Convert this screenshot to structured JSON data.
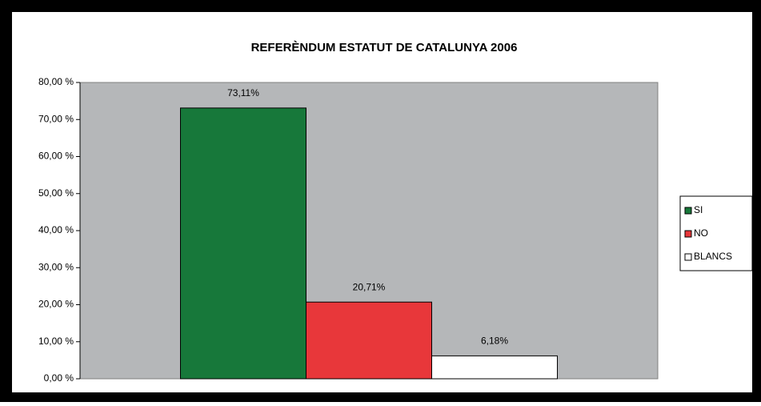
{
  "chart_data": {
    "type": "bar",
    "title": "REFERÈNDUM ESTATUT DE CATALUNYA 2006",
    "series": [
      {
        "name": "SI",
        "color": "#17783a",
        "values": [
          73.11
        ],
        "value_labels": [
          "73,11%"
        ]
      },
      {
        "name": "NO",
        "color": "#e8373a",
        "values": [
          20.71
        ],
        "value_labels": [
          "20,71%"
        ]
      },
      {
        "name": "BLANCS",
        "color": "#ffffff",
        "values": [
          6.18
        ],
        "value_labels": [
          "6,18%"
        ]
      }
    ],
    "ylim": [
      0,
      80
    ],
    "yticks": [
      {
        "value": 0,
        "label": "0,00 %"
      },
      {
        "value": 10,
        "label": "10,00 %"
      },
      {
        "value": 20,
        "label": "20,00 %"
      },
      {
        "value": 30,
        "label": "30,00 %"
      },
      {
        "value": 40,
        "label": "40,00 %"
      },
      {
        "value": 50,
        "label": "50,00 %"
      },
      {
        "value": 60,
        "label": "60,00 %"
      },
      {
        "value": 70,
        "label": "70,00 %"
      },
      {
        "value": 80,
        "label": "80,00 %"
      }
    ],
    "grid": false,
    "legend": "right"
  }
}
